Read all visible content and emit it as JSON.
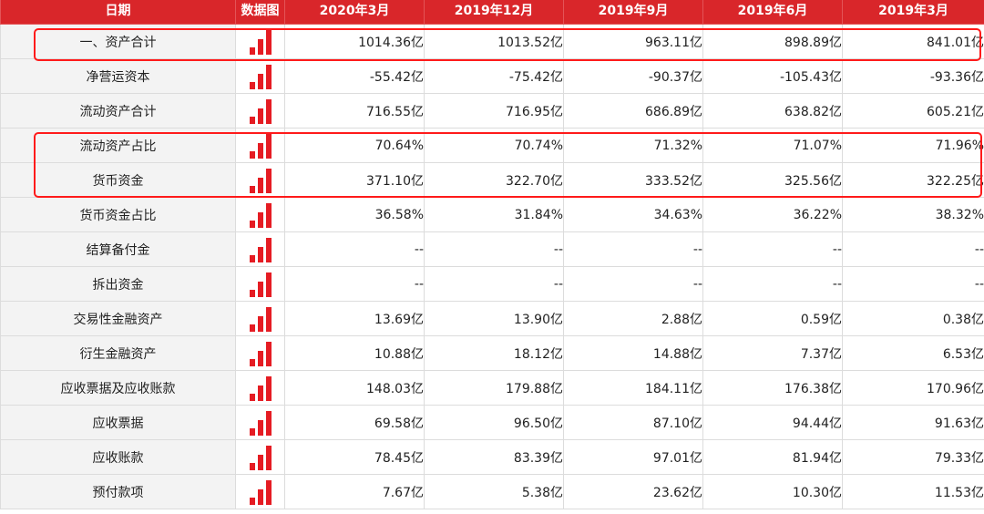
{
  "header": {
    "date_label": "日期",
    "chart_label": "数据图",
    "periods": [
      "2020年3月",
      "2019年12月",
      "2019年9月",
      "2019年6月",
      "2019年3月"
    ]
  },
  "rows": [
    {
      "label": "一、资产合计",
      "values": [
        "1014.36亿",
        "1013.52亿",
        "963.11亿",
        "898.89亿",
        "841.01亿"
      ]
    },
    {
      "label": "净营运资本",
      "values": [
        "-55.42亿",
        "-75.42亿",
        "-90.37亿",
        "-105.43亿",
        "-93.36亿"
      ]
    },
    {
      "label": "流动资产合计",
      "values": [
        "716.55亿",
        "716.95亿",
        "686.89亿",
        "638.82亿",
        "605.21亿"
      ]
    },
    {
      "label": "流动资产占比",
      "values": [
        "70.64%",
        "70.74%",
        "71.32%",
        "71.07%",
        "71.96%"
      ]
    },
    {
      "label": "货币资金",
      "values": [
        "371.10亿",
        "322.70亿",
        "333.52亿",
        "325.56亿",
        "322.25亿"
      ]
    },
    {
      "label": "货币资金占比",
      "values": [
        "36.58%",
        "31.84%",
        "34.63%",
        "36.22%",
        "38.32%"
      ]
    },
    {
      "label": "结算备付金",
      "values": [
        "--",
        "--",
        "--",
        "--",
        "--"
      ]
    },
    {
      "label": "拆出资金",
      "values": [
        "--",
        "--",
        "--",
        "--",
        "--"
      ]
    },
    {
      "label": "交易性金融资产",
      "values": [
        "13.69亿",
        "13.90亿",
        "2.88亿",
        "0.59亿",
        "0.38亿"
      ]
    },
    {
      "label": "衍生金融资产",
      "values": [
        "10.88亿",
        "18.12亿",
        "14.88亿",
        "7.37亿",
        "6.53亿"
      ]
    },
    {
      "label": "应收票据及应收账款",
      "values": [
        "148.03亿",
        "179.88亿",
        "184.11亿",
        "176.38亿",
        "170.96亿"
      ]
    },
    {
      "label": "应收票据",
      "values": [
        "69.58亿",
        "96.50亿",
        "87.10亿",
        "94.44亿",
        "91.63亿"
      ]
    },
    {
      "label": "应收账款",
      "values": [
        "78.45亿",
        "83.39亿",
        "97.01亿",
        "81.94亿",
        "79.33亿"
      ]
    },
    {
      "label": "预付款项",
      "values": [
        "7.67亿",
        "5.38亿",
        "23.62亿",
        "10.30亿",
        "11.53亿"
      ]
    }
  ],
  "colors": {
    "header_bg": "#d9262a",
    "bar": "#e51c23",
    "highlight": "#ff1a1a"
  }
}
